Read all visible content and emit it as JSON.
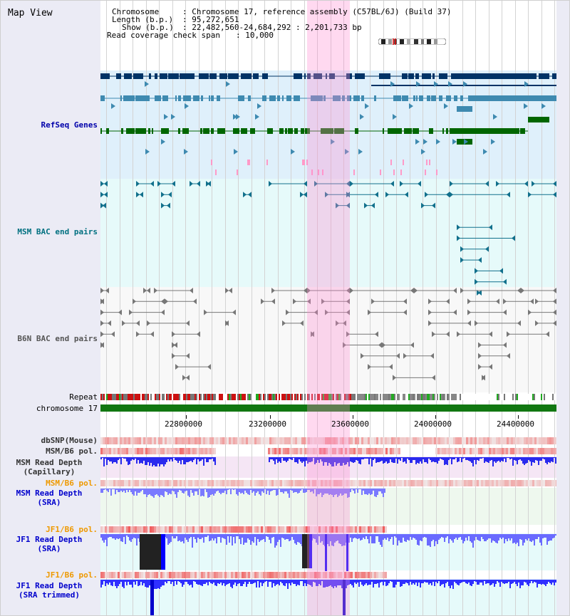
{
  "app": {
    "title": "Map View"
  },
  "info": {
    "chromosome_key": "Chromosome",
    "chromosome_val": ": Chromosome 17, reference assembly (C57BL/6J) (Build 37)",
    "length_key": "Length (b.p.)",
    "length_val": ": 95,272,651",
    "show_key": "Show (b.p.)",
    "show_val": ": 22,482,560-24,684,292 : 2,201,733 bp",
    "span_key": "Read coverage check span",
    "span_val": ": 10,000"
  },
  "tracks": {
    "refseq": "RefSeq Genes",
    "msm_bac": "MSM BAC end pairs",
    "b6n_bac": "B6N BAC end pairs",
    "repeat": "Repeat",
    "chromosome": "chromosome 17",
    "dbsnp": "dbSNP(Mouse)",
    "msm_pol": "MSM/B6 pol.",
    "msm_depth_cap_1": "MSM Read Depth",
    "msm_depth_cap_2": "(Capillary)",
    "msm_pol2": "MSM/B6 pol.",
    "msm_depth_sra_1": "MSM Read Depth",
    "msm_depth_sra_2": "(SRA)",
    "jf1_pol": "JF1/B6 pol.",
    "jf1_depth_sra_1": "JF1 Read Depth",
    "jf1_depth_sra_2": "(SRA)",
    "jf1_pol2": "JF1/B6 pol.",
    "jf1_depth_trim_1": "JF1 Read Depth",
    "jf1_depth_trim_2": "(SRA trimmed)"
  },
  "axis": {
    "ticks": [
      "22800000",
      "23200000",
      "23600000",
      "24000000",
      "24400000"
    ]
  },
  "colors": {
    "refseq_label": "#0000aa",
    "msm_bac_label": "#007080",
    "b6n_label": "#555555",
    "orange_label": "#ee9900",
    "blue_label": "#0000cc",
    "gray_label": "#333333",
    "highlight": "#ff8cd2",
    "gene_dark": "#003366",
    "gene_mid": "#3e8ab0",
    "gene_green": "#006600",
    "msm_pair": "#11708c",
    "b6n_pair": "#777777",
    "depth_blue": "#0000ff",
    "pol_red": "#e03030"
  }
}
